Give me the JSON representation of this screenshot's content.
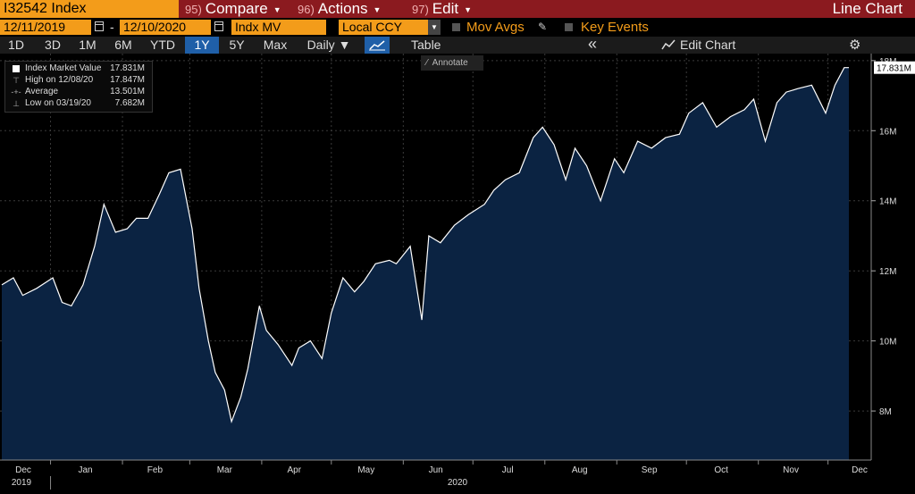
{
  "header": {
    "ticker": "I32542 Index",
    "menus": [
      {
        "num": "95)",
        "label": "Compare",
        "caret": true
      },
      {
        "num": "96)",
        "label": "Actions",
        "caret": true
      },
      {
        "num": "97)",
        "label": "Edit",
        "caret": true
      }
    ],
    "title": "Line Chart"
  },
  "controls": {
    "start_date": "12/11/2019",
    "dash": "-",
    "end_date": "12/10/2020",
    "field": "Indx MV",
    "currency": "Local CCY",
    "mov_avgs": "Mov Avgs",
    "key_events": "Key Events"
  },
  "toolbar": {
    "ranges": [
      "1D",
      "3D",
      "1M",
      "6M",
      "YTD",
      "1Y",
      "5Y",
      "Max"
    ],
    "active_range": "1Y",
    "frequency": "Daily ▼",
    "table": "Table",
    "collapse": "«",
    "edit_chart": "Edit Chart",
    "annotate": "Annotate"
  },
  "legend": {
    "rows": [
      {
        "label": "Index Market Value",
        "value": "17.831M"
      },
      {
        "label": "High on 12/08/20",
        "value": "17.847M"
      },
      {
        "label": "Average",
        "value": "13.501M"
      },
      {
        "label": "Low on 03/19/20",
        "value": "7.682M"
      }
    ]
  },
  "colors": {
    "header_bg": "#8b1a1f",
    "accent_orange": "#f39c1a",
    "area_fill": "#0b2342",
    "line": "#ffffff",
    "active_blue": "#1f5fa8"
  },
  "chart_data": {
    "type": "area",
    "title": "",
    "xlabel": "",
    "ylabel": "",
    "y_ticks": [
      "8M",
      "10M",
      "12M",
      "14M",
      "16M",
      "18M"
    ],
    "ylim": [
      6.6,
      18.2
    ],
    "y_unit": "M",
    "x_tick_labels": [
      "Dec",
      "Jan",
      "Feb",
      "Mar",
      "Apr",
      "May",
      "Jun",
      "Jul",
      "Aug",
      "Sep",
      "Oct",
      "Nov",
      "Dec"
    ],
    "x_year_labels": [
      "2019",
      "2020"
    ],
    "last_value_label": "17.831M",
    "series": [
      {
        "name": "Index Market Value",
        "x": [
          "2019-12-11",
          "2019-12-16",
          "2019-12-20",
          "2019-12-26",
          "2020-01-02",
          "2020-01-06",
          "2020-01-10",
          "2020-01-15",
          "2020-01-20",
          "2020-01-24",
          "2020-01-29",
          "2020-02-03",
          "2020-02-07",
          "2020-02-12",
          "2020-02-17",
          "2020-02-21",
          "2020-02-26",
          "2020-03-02",
          "2020-03-05",
          "2020-03-09",
          "2020-03-12",
          "2020-03-16",
          "2020-03-19",
          "2020-03-23",
          "2020-03-26",
          "2020-03-31",
          "2020-04-03",
          "2020-04-08",
          "2020-04-14",
          "2020-04-17",
          "2020-04-22",
          "2020-04-27",
          "2020-05-01",
          "2020-05-06",
          "2020-05-11",
          "2020-05-15",
          "2020-05-20",
          "2020-05-26",
          "2020-05-29",
          "2020-06-04",
          "2020-06-09",
          "2020-06-12",
          "2020-06-17",
          "2020-06-23",
          "2020-06-29",
          "2020-07-06",
          "2020-07-10",
          "2020-07-15",
          "2020-07-21",
          "2020-07-27",
          "2020-07-31",
          "2020-08-05",
          "2020-08-10",
          "2020-08-14",
          "2020-08-19",
          "2020-08-25",
          "2020-08-31",
          "2020-09-04",
          "2020-09-10",
          "2020-09-16",
          "2020-09-22",
          "2020-09-28",
          "2020-10-02",
          "2020-10-08",
          "2020-10-14",
          "2020-10-20",
          "2020-10-26",
          "2020-10-30",
          "2020-11-04",
          "2020-11-09",
          "2020-11-13",
          "2020-11-18",
          "2020-11-24",
          "2020-11-30",
          "2020-12-04",
          "2020-12-08",
          "2020-12-10"
        ],
        "values": [
          11.6,
          11.8,
          11.3,
          11.5,
          11.8,
          11.1,
          11.0,
          11.6,
          12.7,
          13.9,
          13.1,
          13.2,
          13.5,
          13.5,
          14.2,
          14.8,
          14.9,
          13.2,
          11.5,
          10.0,
          9.1,
          8.6,
          7.7,
          8.4,
          9.2,
          11.0,
          10.3,
          9.9,
          9.3,
          9.8,
          10.0,
          9.5,
          10.8,
          11.8,
          11.4,
          11.7,
          12.2,
          12.3,
          12.2,
          12.7,
          10.6,
          13.0,
          12.8,
          13.3,
          13.6,
          13.9,
          14.3,
          14.6,
          14.8,
          15.8,
          16.1,
          15.6,
          14.6,
          15.5,
          15.0,
          14.0,
          15.2,
          14.8,
          15.7,
          15.5,
          15.8,
          15.9,
          16.5,
          16.8,
          16.1,
          16.4,
          16.6,
          16.9,
          15.7,
          16.8,
          17.1,
          17.2,
          17.3,
          16.5,
          17.3,
          17.8,
          17.8
        ]
      }
    ]
  }
}
